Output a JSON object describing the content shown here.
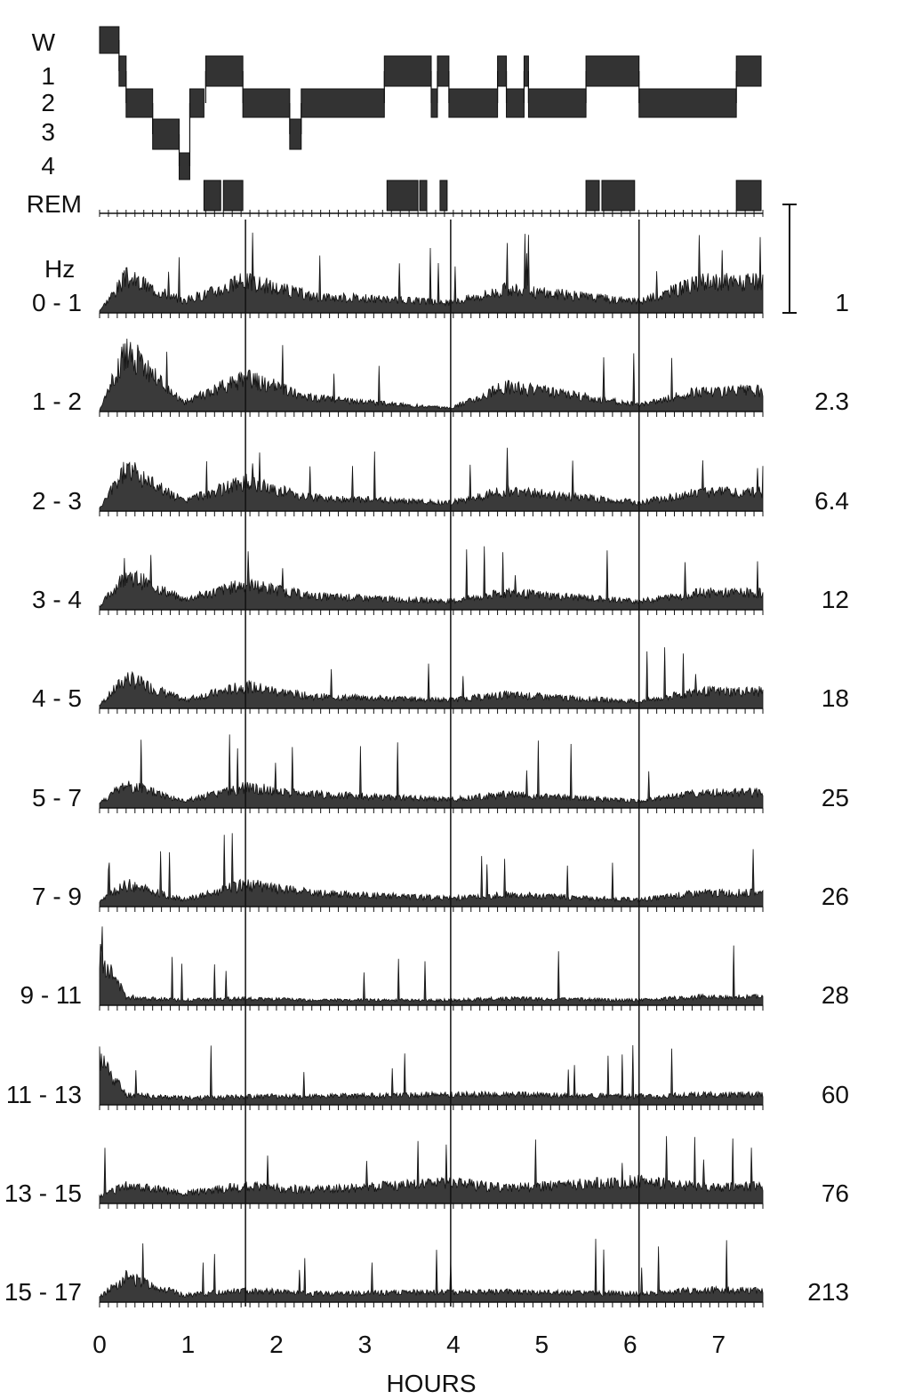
{
  "chart_data": {
    "type": "area",
    "xlabel": "HOURS",
    "xlim": [
      0,
      7.5
    ],
    "x_ticks": [
      "0",
      "1",
      "2",
      "3",
      "4",
      "5",
      "6",
      "7"
    ],
    "reference_lines_hours": [
      1.65,
      3.97,
      6.1
    ],
    "hypnogram": {
      "stage_labels": [
        "W",
        "1",
        "2",
        "3",
        "4",
        "REM"
      ],
      "segments": [
        {
          "stage": "W",
          "start": 0.0,
          "end": 0.22
        },
        {
          "stage": "1",
          "start": 0.22,
          "end": 0.3
        },
        {
          "stage": "2",
          "start": 0.3,
          "end": 0.6
        },
        {
          "stage": "3",
          "start": 0.6,
          "end": 0.9
        },
        {
          "stage": "4",
          "start": 0.9,
          "end": 1.02
        },
        {
          "stage": "2",
          "start": 1.02,
          "end": 1.18
        },
        {
          "stage": "REM",
          "start": 1.18,
          "end": 1.37
        },
        {
          "stage": "REM",
          "start": 1.4,
          "end": 1.62
        },
        {
          "stage": "1",
          "start": 1.2,
          "end": 1.62
        },
        {
          "stage": "2",
          "start": 1.62,
          "end": 2.15
        },
        {
          "stage": "3",
          "start": 2.15,
          "end": 2.28
        },
        {
          "stage": "2",
          "start": 2.28,
          "end": 3.22
        },
        {
          "stage": "1",
          "start": 3.22,
          "end": 3.75
        },
        {
          "stage": "REM",
          "start": 3.25,
          "end": 3.6
        },
        {
          "stage": "REM",
          "start": 3.62,
          "end": 3.7
        },
        {
          "stage": "2",
          "start": 3.75,
          "end": 3.82
        },
        {
          "stage": "1",
          "start": 3.82,
          "end": 3.95
        },
        {
          "stage": "REM",
          "start": 3.85,
          "end": 3.93
        },
        {
          "stage": "2",
          "start": 3.95,
          "end": 4.5
        },
        {
          "stage": "1",
          "start": 4.5,
          "end": 4.6
        },
        {
          "stage": "2",
          "start": 4.6,
          "end": 4.8
        },
        {
          "stage": "1",
          "start": 4.8,
          "end": 4.85
        },
        {
          "stage": "2",
          "start": 4.85,
          "end": 5.5
        },
        {
          "stage": "1",
          "start": 5.5,
          "end": 6.1
        },
        {
          "stage": "REM",
          "start": 5.5,
          "end": 5.65
        },
        {
          "stage": "REM",
          "start": 5.68,
          "end": 6.05
        },
        {
          "stage": "2",
          "start": 6.1,
          "end": 7.2
        },
        {
          "stage": "REM",
          "start": 7.2,
          "end": 7.48
        },
        {
          "stage": "1",
          "start": 7.2,
          "end": 7.48
        }
      ]
    },
    "scale_bar_label": "1",
    "series": [
      {
        "band": "0 -  1",
        "scale": "1",
        "profile": [
          0.03,
          0.42,
          0.14,
          0.38,
          0.2,
          0.12,
          0.28,
          0.13,
          0.36
        ]
      },
      {
        "band": "1 -  2",
        "scale": "2.3",
        "profile": [
          0.02,
          0.72,
          0.1,
          0.4,
          0.16,
          0.04,
          0.3,
          0.08,
          0.24
        ]
      },
      {
        "band": "2 -  3",
        "scale": "6.4",
        "profile": [
          0.03,
          0.5,
          0.12,
          0.34,
          0.16,
          0.1,
          0.24,
          0.1,
          0.22
        ]
      },
      {
        "band": "3 -  4",
        "scale": "12",
        "profile": [
          0.04,
          0.42,
          0.12,
          0.3,
          0.16,
          0.1,
          0.2,
          0.1,
          0.2
        ]
      },
      {
        "band": "4 -  5",
        "scale": "18",
        "profile": [
          0.04,
          0.36,
          0.1,
          0.26,
          0.14,
          0.1,
          0.16,
          0.08,
          0.2
        ]
      },
      {
        "band": "5 -  7",
        "scale": "25",
        "profile": [
          0.06,
          0.28,
          0.08,
          0.24,
          0.16,
          0.1,
          0.16,
          0.08,
          0.18
        ]
      },
      {
        "band": "7 -  9",
        "scale": "26",
        "profile": [
          0.06,
          0.26,
          0.08,
          0.26,
          0.16,
          0.1,
          0.14,
          0.08,
          0.16
        ]
      },
      {
        "band": "9 - 11",
        "scale": "28",
        "profile": [
          0.6,
          0.1,
          0.06,
          0.08,
          0.06,
          0.06,
          0.08,
          0.06,
          0.1
        ]
      },
      {
        "band": "11 - 13",
        "scale": "60",
        "profile": [
          0.55,
          0.12,
          0.08,
          0.1,
          0.1,
          0.12,
          0.12,
          0.1,
          0.12
        ]
      },
      {
        "band": "13 - 15",
        "scale": "76",
        "profile": [
          0.08,
          0.22,
          0.12,
          0.2,
          0.16,
          0.24,
          0.18,
          0.26,
          0.2
        ]
      },
      {
        "band": "15 - 17",
        "scale": "213",
        "profile": [
          0.06,
          0.3,
          0.08,
          0.14,
          0.1,
          0.12,
          0.12,
          0.1,
          0.14
        ]
      }
    ]
  }
}
